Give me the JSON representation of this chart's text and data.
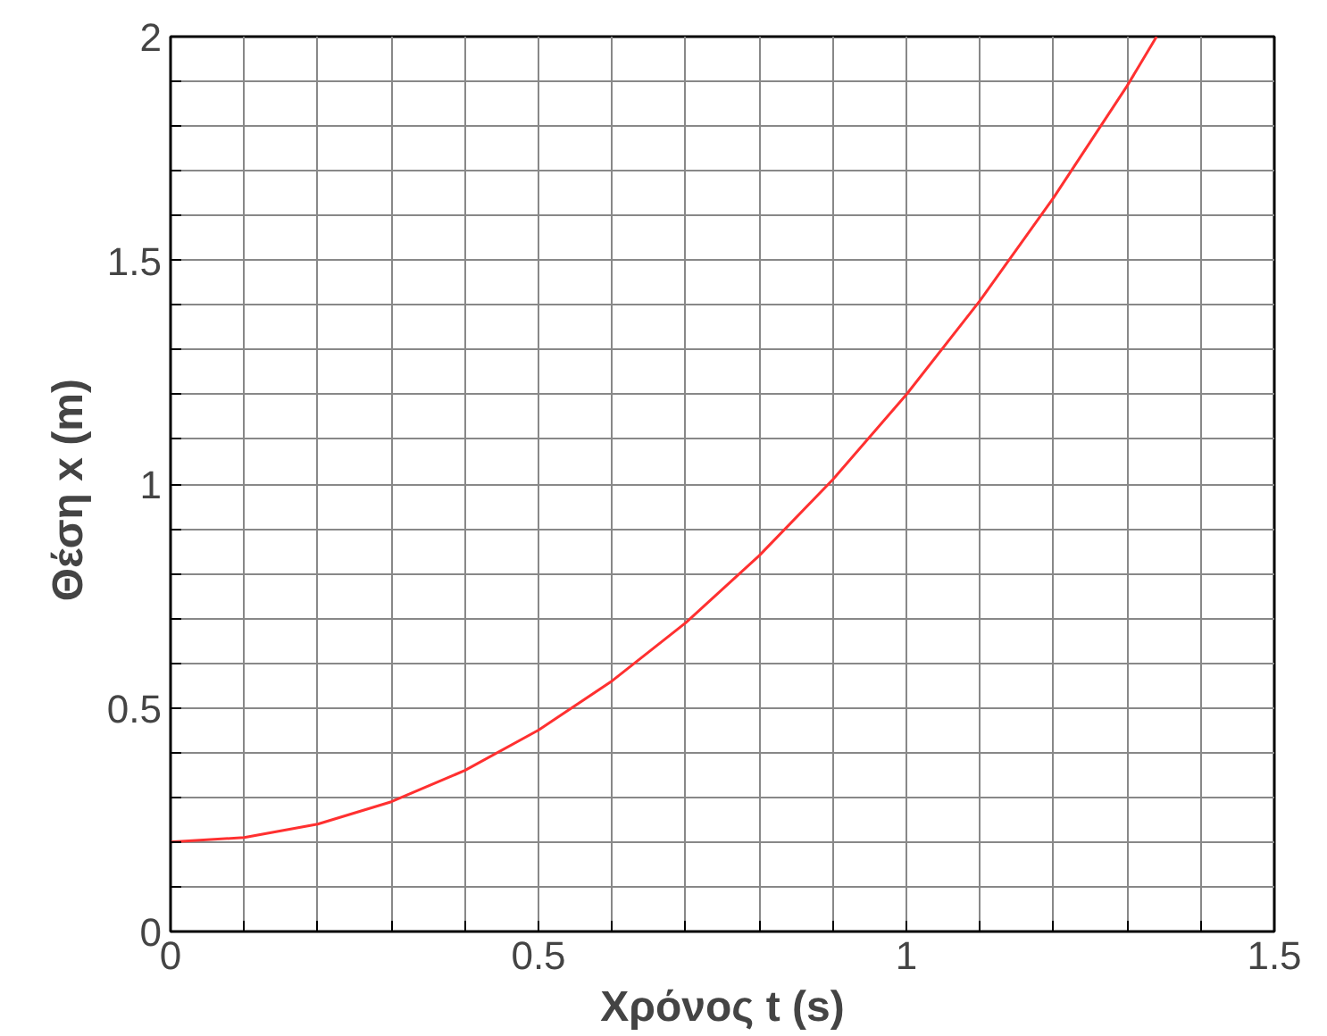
{
  "chart_data": {
    "type": "line",
    "xlabel": "Χρόνος t (s)",
    "ylabel": "Θέση x  (m)",
    "series": [
      {
        "color": "#ff3030",
        "x": [
          0,
          0.1,
          0.2,
          0.3,
          0.4,
          0.5,
          0.6,
          0.7,
          0.8,
          0.9,
          1.0,
          1.1,
          1.2,
          1.3,
          1.34
        ],
        "values": [
          0.2,
          0.21,
          0.24,
          0.29,
          0.36,
          0.45,
          0.56,
          0.69,
          0.84,
          1.01,
          1.2,
          1.41,
          1.64,
          1.89,
          2.0
        ]
      }
    ],
    "xlim": [
      0,
      1.5
    ],
    "ylim": [
      0,
      2
    ],
    "xticks": [
      0,
      {
        "value": 0.1,
        "label": null
      },
      {
        "value": 0.2,
        "label": null
      },
      {
        "value": 0.3,
        "label": null
      },
      {
        "value": 0.4,
        "label": null
      },
      0.5,
      {
        "value": 0.6,
        "label": null
      },
      {
        "value": 0.7,
        "label": null
      },
      {
        "value": 0.8,
        "label": null
      },
      {
        "value": 0.9,
        "label": null
      },
      1,
      {
        "value": 1.1,
        "label": null
      },
      {
        "value": 1.2,
        "label": null
      },
      {
        "value": 1.3,
        "label": null
      },
      {
        "value": 1.4,
        "label": null
      },
      1.5
    ],
    "yticks": [
      0,
      {
        "value": 0.1,
        "label": null
      },
      {
        "value": 0.2,
        "label": null
      },
      {
        "value": 0.3,
        "label": null
      },
      {
        "value": 0.4,
        "label": null
      },
      0.5,
      {
        "value": 0.6,
        "label": null
      },
      {
        "value": 0.7,
        "label": null
      },
      {
        "value": 0.8,
        "label": null
      },
      {
        "value": 0.9,
        "label": null
      },
      1,
      {
        "value": 1.1,
        "label": null
      },
      {
        "value": 1.2,
        "label": null
      },
      {
        "value": 1.3,
        "label": null
      },
      {
        "value": 1.4,
        "label": null
      },
      1.5,
      {
        "value": 1.6,
        "label": null
      },
      {
        "value": 1.7,
        "label": null
      },
      {
        "value": 1.8,
        "label": null
      },
      {
        "value": 1.9,
        "label": null
      },
      2
    ],
    "grid": true,
    "marker": "none",
    "line_style": "solid"
  }
}
